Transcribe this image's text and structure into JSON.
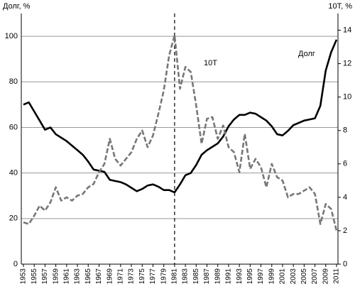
{
  "chart_data": {
    "type": "line",
    "ylabel": "Долг, %",
    "y2label": "10Т, %",
    "annotations": [
      "10Т",
      "Долг"
    ],
    "vline": 1981,
    "x": [
      1953,
      1954,
      1955,
      1956,
      1957,
      1958,
      1959,
      1960,
      1961,
      1962,
      1963,
      1964,
      1965,
      1966,
      1967,
      1968,
      1969,
      1970,
      1971,
      1972,
      1973,
      1974,
      1975,
      1976,
      1977,
      1978,
      1979,
      1980,
      1981,
      1982,
      1983,
      1984,
      1985,
      1986,
      1987,
      1988,
      1989,
      1990,
      1991,
      1992,
      1993,
      1994,
      1995,
      1996,
      1997,
      1998,
      1999,
      2000,
      2001,
      2002,
      2003,
      2004,
      2005,
      2006,
      2007,
      2008,
      2009,
      2010,
      2011
    ],
    "xlim": [
      1953,
      2011
    ],
    "xticks": [
      1953,
      1955,
      1957,
      1959,
      1961,
      1963,
      1965,
      1967,
      1969,
      1971,
      1973,
      1975,
      1977,
      1979,
      1981,
      1983,
      1985,
      1987,
      1989,
      1991,
      1993,
      1995,
      1997,
      1999,
      2001,
      2003,
      2005,
      2007,
      2009,
      2011
    ],
    "ylim": [
      0,
      110
    ],
    "yticks": [
      0,
      20,
      40,
      60,
      80,
      100
    ],
    "y2lim": [
      0,
      15
    ],
    "y2ticks": [
      0,
      2,
      4,
      6,
      8,
      10,
      12,
      14
    ],
    "grid": true,
    "series": [
      {
        "name": "Долг",
        "color": "#000000",
        "values": [
          70,
          71,
          67,
          63,
          59,
          60,
          57,
          55.5,
          54,
          52,
          50,
          48,
          45,
          41.5,
          41,
          40.5,
          37,
          36.5,
          36,
          35,
          33.5,
          32,
          33,
          34.5,
          35,
          34,
          32.5,
          32.5,
          31.5,
          35,
          39,
          40,
          43.5,
          48,
          50,
          51.5,
          53,
          56,
          60.5,
          63.5,
          65.5,
          65.5,
          66.5,
          66,
          64.5,
          63,
          60.5,
          57,
          56.5,
          58.5,
          61,
          62,
          63,
          63.5,
          64,
          69.5,
          85,
          93,
          98.5
        ]
      },
      {
        "name": "10Т",
        "color": "#777777",
        "axis": "y2",
        "values": [
          2.5,
          2.4,
          2.9,
          3.5,
          3.2,
          3.7,
          4.6,
          3.8,
          4.0,
          3.8,
          4.1,
          4.2,
          4.6,
          4.8,
          5.5,
          6.0,
          7.5,
          6.3,
          5.9,
          6.3,
          6.7,
          7.5,
          8.0,
          7.0,
          7.7,
          9.0,
          10.4,
          12.5,
          13.7,
          10.5,
          11.8,
          11.5,
          9.5,
          7.2,
          8.7,
          8.8,
          7.5,
          8.3,
          7.0,
          6.7,
          5.5,
          7.8,
          5.7,
          6.3,
          5.8,
          4.6,
          6.0,
          5.2,
          5.0,
          4.0,
          4.2,
          4.2,
          4.4,
          4.6,
          4.2,
          2.4,
          3.6,
          3.3,
          2.0
        ]
      }
    ]
  }
}
